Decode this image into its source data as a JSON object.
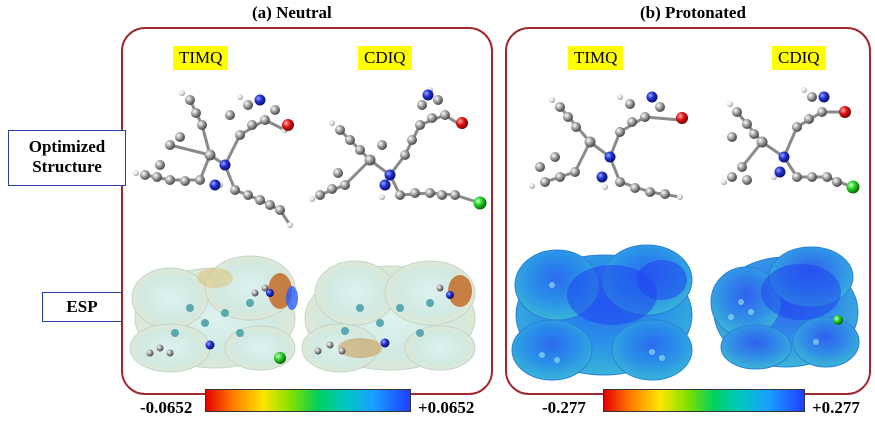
{
  "panels": {
    "neutral": {
      "title": "(a) Neutral",
      "molecules": [
        "TIMQ",
        "CDIQ"
      ],
      "scale": {
        "min": "-0.0652",
        "max": "+0.0652"
      }
    },
    "protonated": {
      "title": "(b) Protonated",
      "molecules": [
        "TIMQ",
        "CDIQ"
      ],
      "scale": {
        "min": "-0.277",
        "max": "+0.277"
      }
    }
  },
  "rows": {
    "optimized": "Optimized Structure",
    "esp": "ESP"
  },
  "colors": {
    "panel_border": "#a0282d",
    "label_highlight": "#ffff00",
    "row_label_border": "#2a3fa8",
    "carbon": "#8a8a8a",
    "nitrogen": "#1f2fd0",
    "oxygen": "#e01010",
    "chlorine": "#22cc22",
    "hydrogen": "#e6e6e6"
  }
}
